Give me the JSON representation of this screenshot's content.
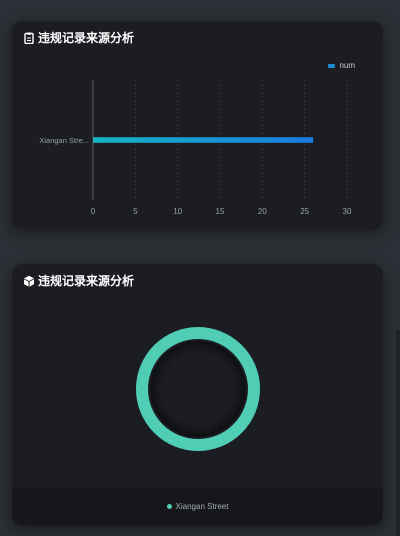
{
  "panels": [
    {
      "title": "违规记录来源分析",
      "icon": "clipboard-icon",
      "legend_label": "num"
    },
    {
      "title": "违规记录来源分析",
      "icon": "cube-icon",
      "legend_label": "Xiangan Street"
    }
  ],
  "chart_data": [
    {
      "type": "bar",
      "orientation": "horizontal",
      "categories": [
        "Xiangan Street"
      ],
      "category_tick_labels": [
        "Xiangan Stre..."
      ],
      "series": [
        {
          "name": "num",
          "values": [
            26
          ]
        }
      ],
      "xlim": [
        0,
        30
      ],
      "xticks": [
        0,
        5,
        10,
        15,
        20,
        25,
        30
      ],
      "grid": true,
      "legend": "top-right",
      "colors": [
        "#15b5c4",
        "#1a7be0"
      ]
    },
    {
      "type": "pie",
      "style": "donut",
      "labels": [
        "Xiangan Street"
      ],
      "values": [
        26
      ],
      "legend": "bottom",
      "colors": [
        "#4fcdb5"
      ]
    }
  ]
}
